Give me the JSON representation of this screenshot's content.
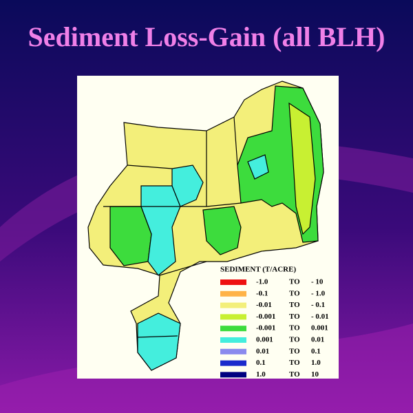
{
  "header": {
    "title": "Sediment Loss-Gain (all BLH)"
  },
  "legend": {
    "title": "SEDIMENT (T/ACRE)",
    "rows": [
      {
        "from": "-1.0",
        "sep": "TO",
        "to": "- 10",
        "color": "#ee1111"
      },
      {
        "from": "-0.1",
        "sep": "TO",
        "to": "- 1.0",
        "color": "#ffb347"
      },
      {
        "from": "-0.01",
        "sep": "TO",
        "to": "- 0.1",
        "color": "#f3ef7a"
      },
      {
        "from": "-0.001",
        "sep": "TO",
        "to": "- 0.01",
        "color": "#c8f032"
      },
      {
        "from": "-0.001",
        "sep": "TO",
        "to": "0.001",
        "color": "#3ddc3d"
      },
      {
        "from": "0.001",
        "sep": "TO",
        "to": "0.01",
        "color": "#44eedd"
      },
      {
        "from": "0.01",
        "sep": "TO",
        "to": "0.1",
        "color": "#8a8aee"
      },
      {
        "from": "0.1",
        "sep": "TO",
        "to": "1.0",
        "color": "#1a2acc"
      },
      {
        "from": "1.0",
        "sep": "TO",
        "to": "10",
        "color": "#000080"
      }
    ]
  }
}
